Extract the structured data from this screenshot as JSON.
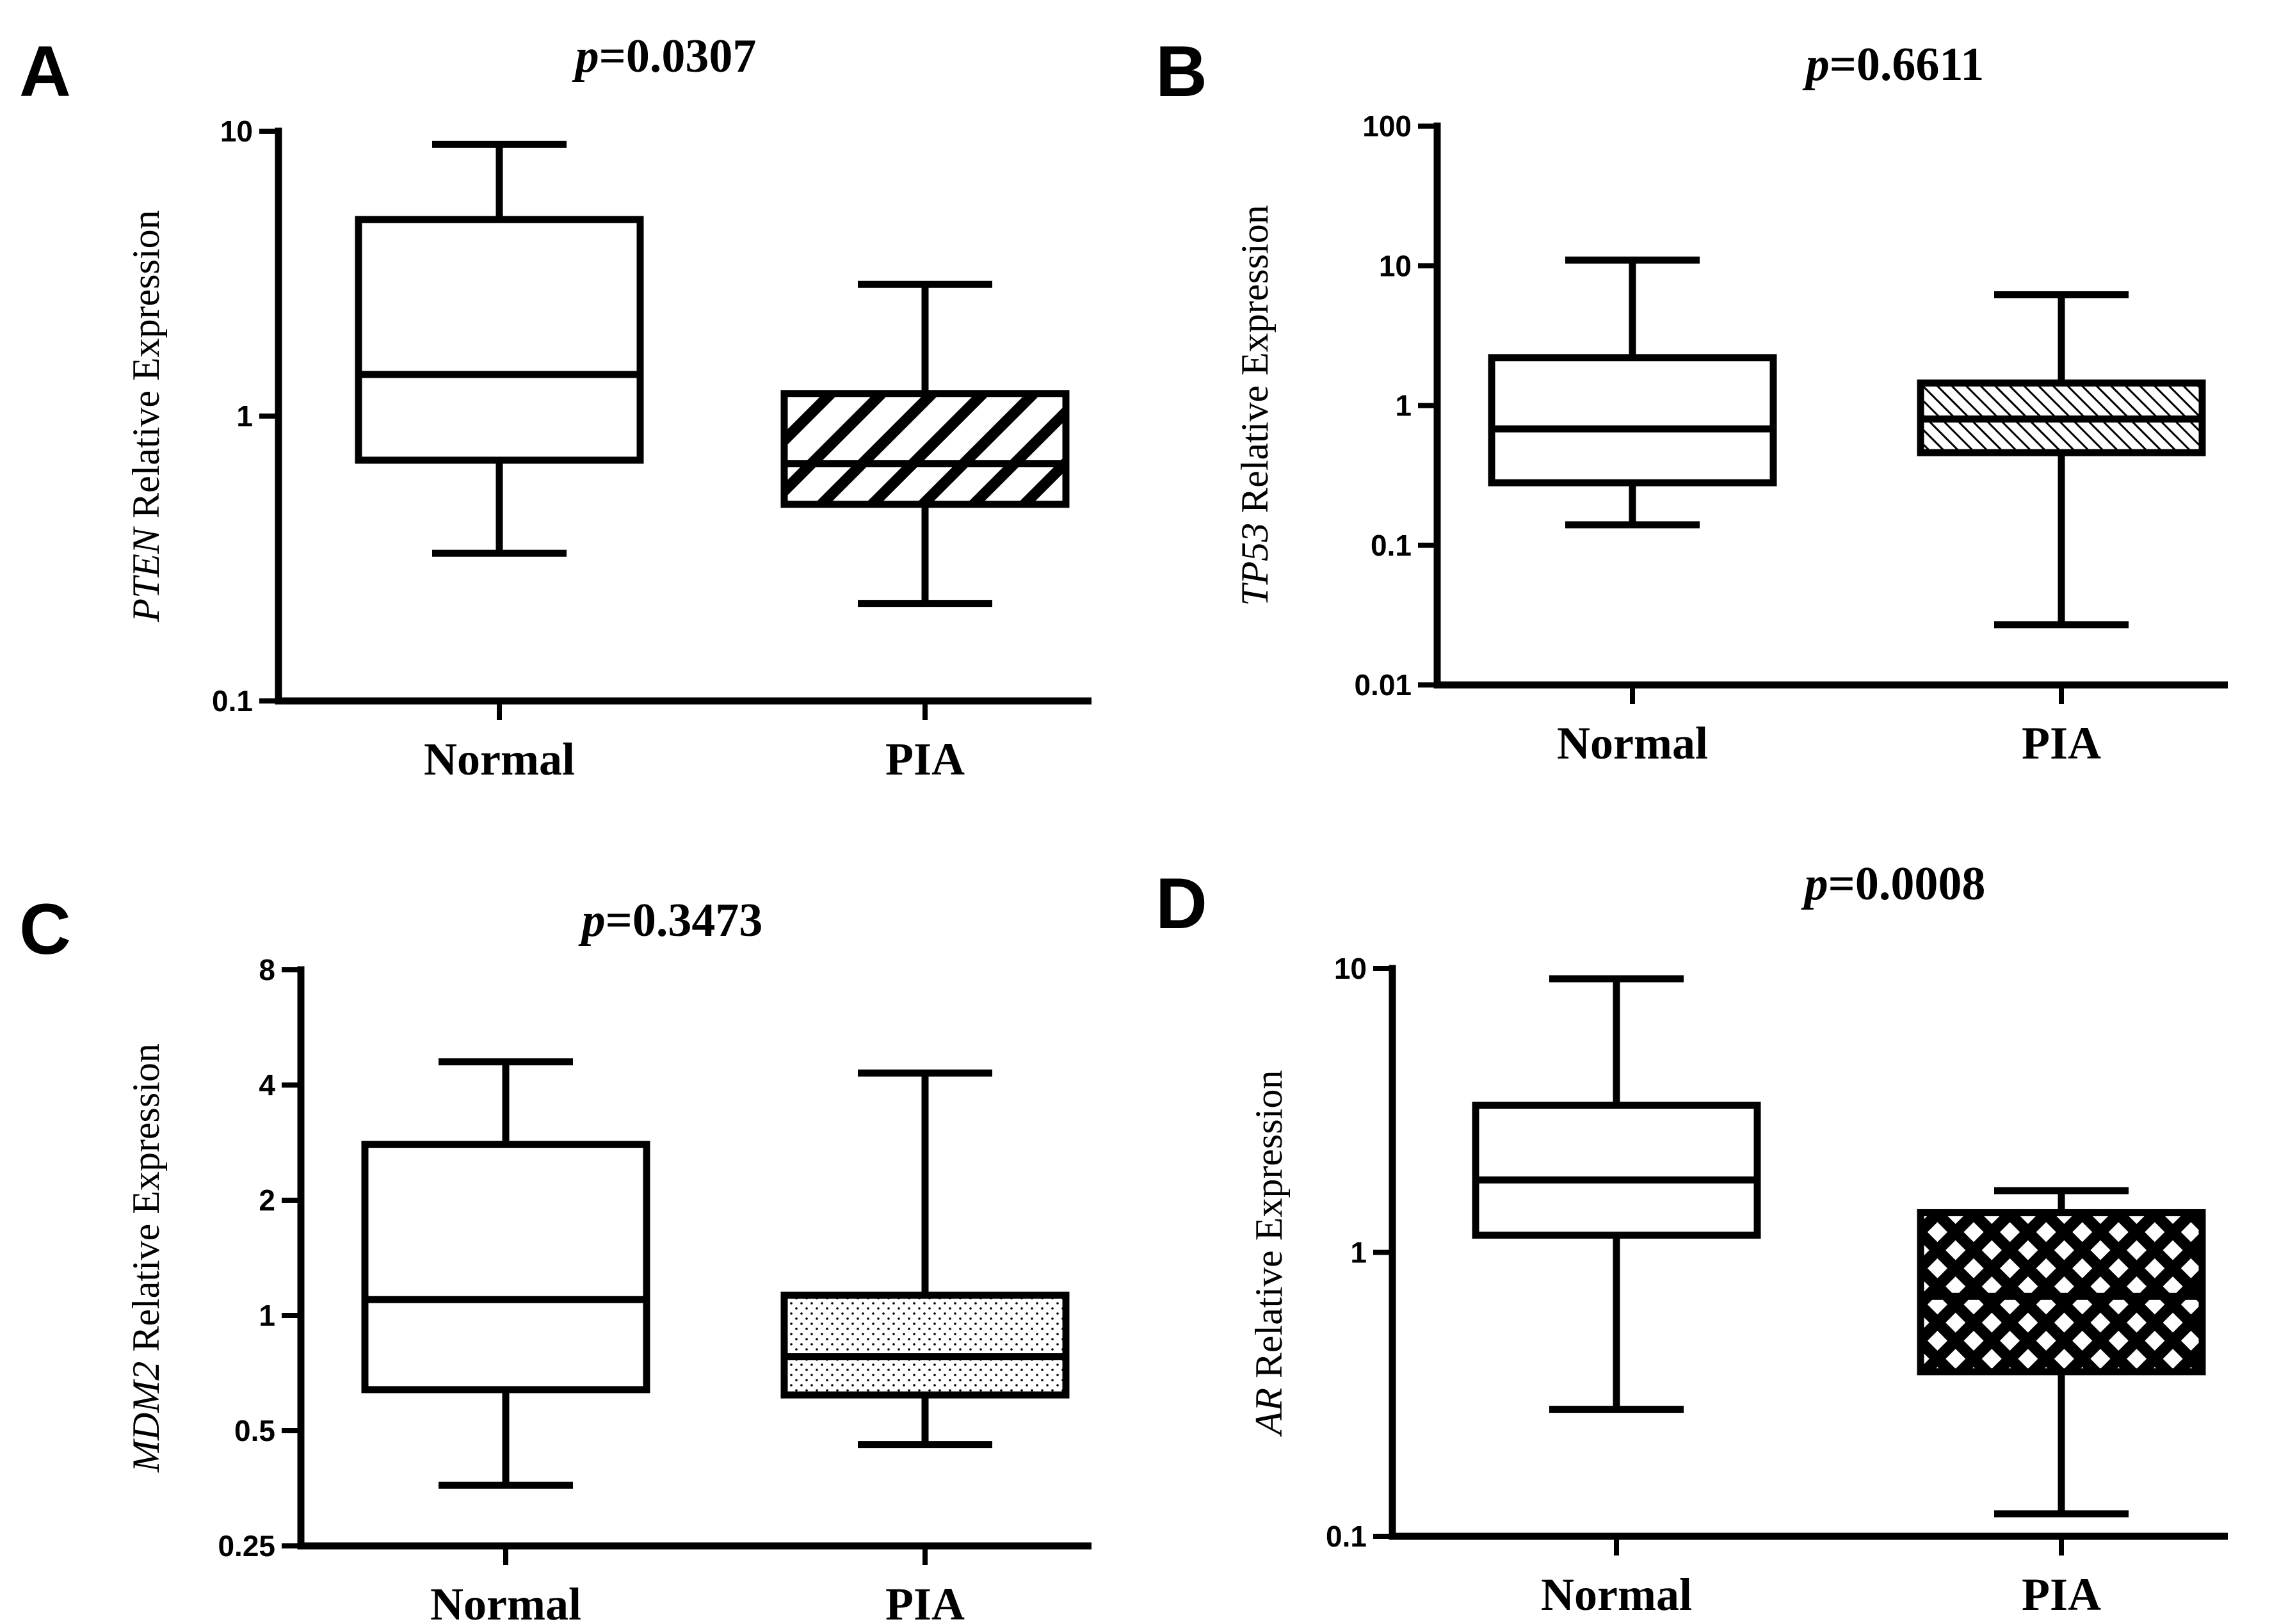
{
  "chart_data": [
    {
      "type": "box",
      "panel": "A",
      "title_prefix": "p",
      "title_value": "=0.0307",
      "ylabel_gene": "PTEN",
      "ylabel_rest": " Relative Expression",
      "yscale": "log10",
      "ylim": [
        0.1,
        10
      ],
      "ticks": [
        0.1,
        1,
        10
      ],
      "tick_labels": [
        "0.1",
        "1",
        "10"
      ],
      "categories": [
        "Normal",
        "PIA"
      ],
      "boxes": [
        {
          "category": "Normal",
          "min": 0.33,
          "q1": 0.7,
          "median": 1.4,
          "q3": 4.9,
          "max": 9.0,
          "fill": "none"
        },
        {
          "category": "PIA",
          "min": 0.22,
          "q1": 0.49,
          "median": 0.68,
          "q3": 1.2,
          "max": 2.9,
          "fill": "diagonal-hatch-dense"
        }
      ]
    },
    {
      "type": "box",
      "panel": "B",
      "title_prefix": "p",
      "title_value": "=0.6611",
      "ylabel_gene": "TP53",
      "ylabel_rest": " Relative Expression",
      "yscale": "log10",
      "ylim": [
        0.01,
        100
      ],
      "ticks": [
        0.01,
        0.1,
        1,
        10,
        100
      ],
      "tick_labels": [
        "0.01",
        "0.1",
        "1",
        "10",
        "100"
      ],
      "categories": [
        "Normal",
        "PIA"
      ],
      "boxes": [
        {
          "category": "Normal",
          "min": 0.14,
          "q1": 0.28,
          "median": 0.68,
          "q3": 2.2,
          "max": 11.0,
          "fill": "none"
        },
        {
          "category": "PIA",
          "min": 0.027,
          "q1": 0.46,
          "median": 0.8,
          "q3": 1.45,
          "max": 6.2,
          "fill": "fine-diagonal-hatch"
        }
      ]
    },
    {
      "type": "box",
      "panel": "C",
      "title_prefix": "p",
      "title_value": "=0.3473",
      "ylabel_gene": "MDM2",
      "ylabel_rest": " Relative Expression",
      "yscale": "log2",
      "ylim": [
        0.25,
        8
      ],
      "ticks": [
        0.25,
        0.5,
        1,
        2,
        4,
        8
      ],
      "tick_labels": [
        "0.25",
        "0.5",
        "1",
        "2",
        "4",
        "8"
      ],
      "categories": [
        "Normal",
        "PIA"
      ],
      "boxes": [
        {
          "category": "Normal",
          "min": 0.36,
          "q1": 0.64,
          "median": 1.1,
          "q3": 2.8,
          "max": 4.6,
          "fill": "none"
        },
        {
          "category": "PIA",
          "min": 0.46,
          "q1": 0.62,
          "median": 0.78,
          "q3": 1.13,
          "max": 4.3,
          "fill": "dots"
        }
      ]
    },
    {
      "type": "box",
      "panel": "D",
      "title_prefix": "p",
      "title_value": "=0.0008",
      "ylabel_gene": "AR",
      "ylabel_rest": " Relative Expression",
      "yscale": "log10",
      "ylim": [
        0.1,
        10
      ],
      "ticks": [
        0.1,
        1,
        10
      ],
      "tick_labels": [
        "0.1",
        "1",
        "10"
      ],
      "categories": [
        "Normal",
        "PIA"
      ],
      "boxes": [
        {
          "category": "Normal",
          "min": 0.28,
          "q1": 1.15,
          "median": 1.8,
          "q3": 3.3,
          "max": 9.2,
          "fill": "none"
        },
        {
          "category": "PIA",
          "min": 0.12,
          "q1": 0.38,
          "median": 0.7,
          "q3": 1.38,
          "max": 1.65,
          "fill": "crosshatch"
        }
      ]
    }
  ]
}
